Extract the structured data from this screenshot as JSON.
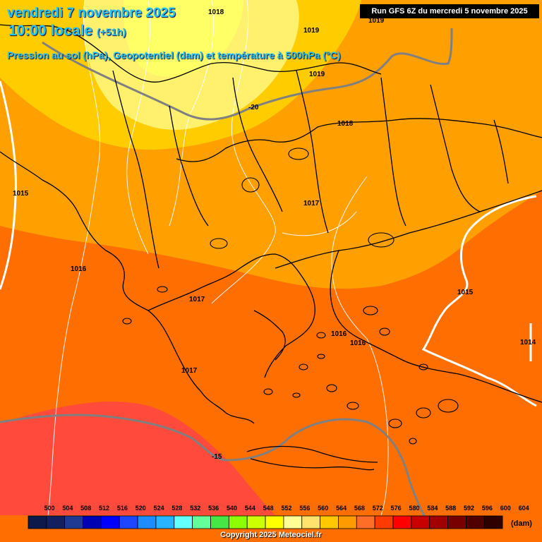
{
  "header": {
    "date_line": "vendredi 7 novembre 2025",
    "time_line": "10:00 locale",
    "forecast_offset": "(+51h)",
    "subtitle": "Pression au sol (hPa), Geopotentiel (dam) et température à 500hPa (°C)",
    "run_info": "Run GFS 6Z du mercredi 5 novembre 2025"
  },
  "pressure_labels": [
    "1018",
    "1019",
    "1019",
    "1019",
    "1018",
    "1015",
    "1017",
    "1016",
    "1017",
    "1016",
    "1016",
    "1017",
    "1015",
    "1014"
  ],
  "temperature_labels": [
    "-20",
    "-15"
  ],
  "legend": {
    "ticks": [
      "500",
      "504",
      "508",
      "512",
      "516",
      "520",
      "524",
      "528",
      "532",
      "536",
      "540",
      "544",
      "548",
      "552",
      "556",
      "560",
      "564",
      "568",
      "572",
      "576",
      "580",
      "584",
      "588",
      "592",
      "596",
      "600",
      "604"
    ],
    "colors": [
      "#0b1a4a",
      "#13205f",
      "#1f3a93",
      "#0000b4",
      "#0000ff",
      "#1e46ff",
      "#1e8cff",
      "#28b4ff",
      "#64ffff",
      "#64ff9a",
      "#46e646",
      "#8cff00",
      "#ccff00",
      "#ffff00",
      "#ffff96",
      "#ffe16e",
      "#ffc800",
      "#ff9b00",
      "#ff6e28",
      "#ff3c00",
      "#ff0000",
      "#c80000",
      "#a00000",
      "#780000",
      "#500000",
      "#2e0000"
    ],
    "unit": "(dam)"
  },
  "copyright": "Copyright 2025 Meteociel.fr",
  "colors": {
    "zone_552": "#ffff66",
    "zone_556": "#fff06e",
    "zone_560": "#ffcc00",
    "zone_564": "#ff9f00",
    "zone_568": "#ff6e00",
    "zone_572": "#ff4a3c",
    "title": "#1fc6ff"
  }
}
